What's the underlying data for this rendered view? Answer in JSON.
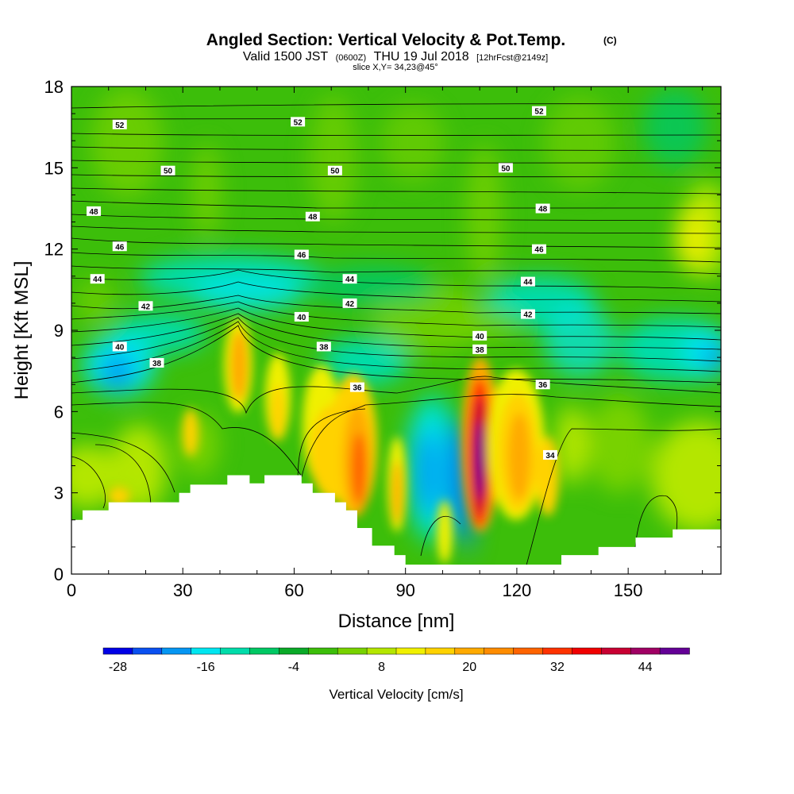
{
  "title": {
    "main": "Angled Section: Vertical Velocity & Pot.Temp.",
    "copyright": "(C)",
    "valid_prefix": "Valid 1500 JST",
    "utc": "(0600Z)",
    "valid_date": "THU 19 Jul 2018",
    "forecast": "[12hrFcst@2149z]",
    "slice": "slice X,Y= 34,23@45°"
  },
  "chart_data": {
    "type": "heatmap",
    "xlabel": "Distance [nm]",
    "ylabel": "Height [Kft MSL]",
    "xlim": [
      0,
      175
    ],
    "ylim": [
      0,
      18
    ],
    "xticks": [
      0,
      30,
      60,
      90,
      120,
      150
    ],
    "yticks": [
      0,
      3,
      6,
      9,
      12,
      15,
      18
    ],
    "colorbar": {
      "label": "Vertical Velocity [cm/s]",
      "levels": [
        -30,
        -26,
        -22,
        -18,
        -14,
        -10,
        -6,
        -2,
        2,
        6,
        10,
        14,
        18,
        22,
        26,
        30,
        34,
        38,
        42,
        46,
        50
      ],
      "colors": [
        "#0000e6",
        "#0a50f0",
        "#0596f2",
        "#00e6f0",
        "#00dcaa",
        "#00c864",
        "#0aaa28",
        "#3cbe0a",
        "#78d200",
        "#b4e600",
        "#f0f000",
        "#ffd200",
        "#ffaa00",
        "#ff8c00",
        "#ff6400",
        "#ff3200",
        "#f00000",
        "#c80032",
        "#a00064",
        "#640096"
      ],
      "tick_values": [
        -28,
        -16,
        -4,
        8,
        20,
        32,
        44
      ]
    },
    "isentrope_labels": [
      {
        "text": "52",
        "x": 13,
        "y": 16.6
      },
      {
        "text": "52",
        "x": 61,
        "y": 16.7
      },
      {
        "text": "52",
        "x": 126,
        "y": 17.1
      },
      {
        "text": "50",
        "x": 26,
        "y": 14.9
      },
      {
        "text": "50",
        "x": 71,
        "y": 14.9
      },
      {
        "text": "50",
        "x": 117,
        "y": 15.0
      },
      {
        "text": "48",
        "x": 6,
        "y": 13.4
      },
      {
        "text": "48",
        "x": 65,
        "y": 13.2
      },
      {
        "text": "48",
        "x": 127,
        "y": 13.5
      },
      {
        "text": "46",
        "x": 13,
        "y": 12.1
      },
      {
        "text": "46",
        "x": 62,
        "y": 11.8
      },
      {
        "text": "46",
        "x": 126,
        "y": 12.0
      },
      {
        "text": "44",
        "x": 7,
        "y": 10.9
      },
      {
        "text": "44",
        "x": 75,
        "y": 10.9
      },
      {
        "text": "44",
        "x": 123,
        "y": 10.8
      },
      {
        "text": "42",
        "x": 20,
        "y": 9.9
      },
      {
        "text": "42",
        "x": 75,
        "y": 10.0
      },
      {
        "text": "42",
        "x": 123,
        "y": 9.6
      },
      {
        "text": "40",
        "x": 13,
        "y": 8.4
      },
      {
        "text": "40",
        "x": 62,
        "y": 9.5
      },
      {
        "text": "40",
        "x": 110,
        "y": 8.8
      },
      {
        "text": "38",
        "x": 23,
        "y": 7.8
      },
      {
        "text": "38",
        "x": 68,
        "y": 8.4
      },
      {
        "text": "38",
        "x": 110,
        "y": 8.3
      },
      {
        "text": "36",
        "x": 77,
        "y": 6.9
      },
      {
        "text": "36",
        "x": 127,
        "y": 7.0
      },
      {
        "text": "34",
        "x": 129,
        "y": 4.4
      }
    ],
    "terrain": [
      [
        0,
        2.0
      ],
      [
        3,
        2.0
      ],
      [
        3,
        2.35
      ],
      [
        10,
        2.35
      ],
      [
        10,
        2.65
      ],
      [
        29,
        2.65
      ],
      [
        29,
        3.0
      ],
      [
        32,
        3.0
      ],
      [
        32,
        3.3
      ],
      [
        42,
        3.3
      ],
      [
        42,
        3.65
      ],
      [
        48,
        3.65
      ],
      [
        48,
        3.35
      ],
      [
        52,
        3.35
      ],
      [
        52,
        3.65
      ],
      [
        62,
        3.65
      ],
      [
        62,
        3.35
      ],
      [
        65,
        3.35
      ],
      [
        65,
        3.0
      ],
      [
        71,
        3.0
      ],
      [
        71,
        2.65
      ],
      [
        74,
        2.65
      ],
      [
        74,
        2.35
      ],
      [
        77,
        2.35
      ],
      [
        77,
        1.7
      ],
      [
        81,
        1.7
      ],
      [
        81,
        1.05
      ],
      [
        87,
        1.05
      ],
      [
        87,
        0.7
      ],
      [
        90,
        0.7
      ],
      [
        90,
        0.35
      ],
      [
        93,
        0.35
      ],
      [
        93,
        0.35
      ],
      [
        132,
        0.35
      ],
      [
        132,
        0.7
      ],
      [
        142,
        0.7
      ],
      [
        142,
        1.0
      ],
      [
        152,
        1.0
      ],
      [
        152,
        1.35
      ],
      [
        162,
        1.35
      ],
      [
        162,
        1.65
      ],
      [
        175,
        1.65
      ]
    ]
  }
}
